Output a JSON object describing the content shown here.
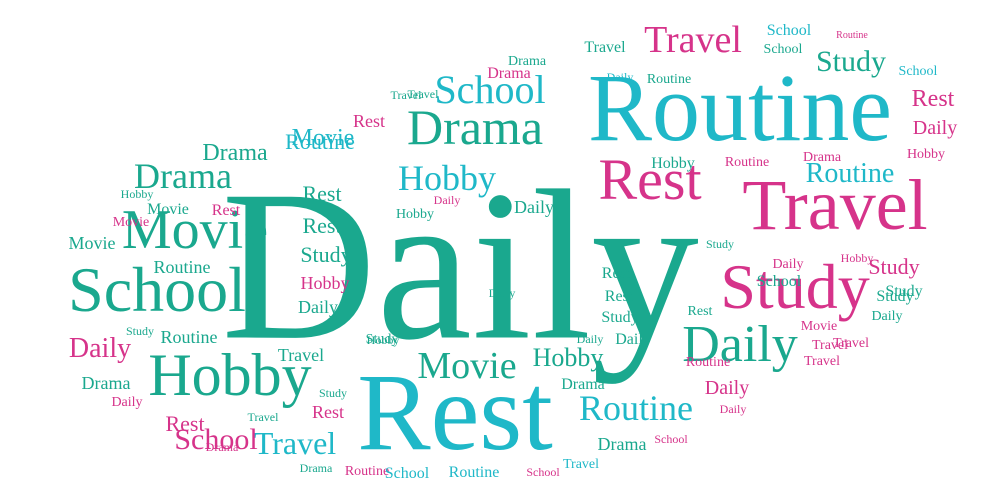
{
  "colors": {
    "teal": "#1aa88e",
    "cyan": "#1fb8c8",
    "pink": "#d6338a"
  },
  "words": [
    {
      "text": "Daily",
      "color": "teal"
    },
    {
      "text": "Routine",
      "color": "cyan"
    },
    {
      "text": "Rest",
      "color": "cyan"
    },
    {
      "text": "Travel",
      "color": "pink"
    },
    {
      "text": "School",
      "color": "teal"
    },
    {
      "text": "Study",
      "color": "pink"
    },
    {
      "text": "Hobby",
      "color": "teal"
    },
    {
      "text": "Movie",
      "color": "teal"
    },
    {
      "text": "Rest",
      "color": "pink"
    },
    {
      "text": "Drama",
      "color": "teal"
    },
    {
      "text": "School",
      "color": "cyan"
    },
    {
      "text": "Daily",
      "color": "teal"
    },
    {
      "text": "Hobby",
      "color": "cyan"
    },
    {
      "text": "Movie",
      "color": "teal"
    },
    {
      "text": "Routine",
      "color": "cyan"
    },
    {
      "text": "Travel",
      "color": "pink"
    },
    {
      "text": "Study",
      "color": "teal"
    },
    {
      "text": "Rest",
      "color": "pink"
    },
    {
      "text": "Drama",
      "color": "teal"
    },
    {
      "text": "Routine",
      "color": "cyan"
    },
    {
      "text": "Travel",
      "color": "cyan"
    },
    {
      "text": "Daily",
      "color": "pink"
    },
    {
      "text": "School",
      "color": "pink"
    },
    {
      "text": "Drama",
      "color": "teal"
    },
    {
      "text": "Movie",
      "color": "cyan"
    },
    {
      "text": "Hobby",
      "color": "teal"
    },
    {
      "text": "Study",
      "color": "pink"
    },
    {
      "text": "Routine",
      "color": "cyan"
    },
    {
      "text": "Rest",
      "color": "pink"
    },
    {
      "text": "Daily",
      "color": "pink"
    },
    {
      "text": "Rest",
      "color": "teal"
    },
    {
      "text": "Rest",
      "color": "teal"
    },
    {
      "text": "Study",
      "color": "teal"
    },
    {
      "text": "Hobby",
      "color": "pink"
    },
    {
      "text": "Daily",
      "color": "teal"
    },
    {
      "text": "Routine",
      "color": "teal"
    },
    {
      "text": "Movie",
      "color": "teal"
    },
    {
      "text": "Rest",
      "color": "pink"
    },
    {
      "text": "Daily",
      "color": "teal"
    },
    {
      "text": "Routine",
      "color": "teal"
    },
    {
      "text": "Drama",
      "color": "pink"
    },
    {
      "text": "Drama",
      "color": "teal"
    },
    {
      "text": "Travel",
      "color": "teal"
    },
    {
      "text": "Travel",
      "color": "teal"
    },
    {
      "text": "School",
      "color": "cyan"
    },
    {
      "text": "School",
      "color": "teal"
    },
    {
      "text": "Routine",
      "color": "pink"
    },
    {
      "text": "Daily",
      "color": "cyan"
    },
    {
      "text": "Hobby",
      "color": "pink"
    },
    {
      "text": "Hobby",
      "color": "teal"
    },
    {
      "text": "Routine",
      "color": "pink"
    },
    {
      "text": "Drama",
      "color": "pink"
    },
    {
      "text": "Study",
      "color": "teal"
    },
    {
      "text": "Daily",
      "color": "pink"
    },
    {
      "text": "Rest",
      "color": "teal"
    },
    {
      "text": "Rest",
      "color": "teal"
    },
    {
      "text": "Study",
      "color": "teal"
    },
    {
      "text": "Daily",
      "color": "teal"
    },
    {
      "text": "Rest",
      "color": "teal"
    },
    {
      "text": "Study",
      "color": "teal"
    },
    {
      "text": "Daily",
      "color": "teal"
    },
    {
      "text": "Movie",
      "color": "pink"
    },
    {
      "text": "Hobby",
      "color": "pink"
    },
    {
      "text": "Daily",
      "color": "teal"
    },
    {
      "text": "Study",
      "color": "teal"
    },
    {
      "text": "Travel",
      "color": "pink"
    },
    {
      "text": "Travel",
      "color": "teal"
    },
    {
      "text": "Movie",
      "color": "pink"
    },
    {
      "text": "Movie",
      "color": "teal"
    },
    {
      "text": "Hobby",
      "color": "teal"
    },
    {
      "text": "Study",
      "color": "teal"
    },
    {
      "text": "Routine",
      "color": "teal"
    },
    {
      "text": "Hobby",
      "color": "teal"
    },
    {
      "text": "Daily",
      "color": "teal"
    },
    {
      "text": "Travel",
      "color": "teal"
    },
    {
      "text": "Drama",
      "color": "teal"
    },
    {
      "text": "Daily",
      "color": "pink"
    },
    {
      "text": "Study",
      "color": "teal"
    },
    {
      "text": "Rest",
      "color": "pink"
    },
    {
      "text": "Travel",
      "color": "pink"
    },
    {
      "text": "Drama",
      "color": "teal"
    },
    {
      "text": "Drama",
      "color": "pink"
    },
    {
      "text": "Routine",
      "color": "pink"
    },
    {
      "text": "School",
      "color": "cyan"
    },
    {
      "text": "Routine",
      "color": "cyan"
    },
    {
      "text": "School",
      "color": "pink"
    },
    {
      "text": "Travel",
      "color": "cyan"
    },
    {
      "text": "Drama",
      "color": "teal"
    },
    {
      "text": "School",
      "color": "pink"
    },
    {
      "text": "Daily",
      "color": "pink"
    },
    {
      "text": "Drama",
      "color": "teal"
    },
    {
      "text": "Routine",
      "color": "pink"
    },
    {
      "text": "Travel",
      "color": "pink"
    },
    {
      "text": "Daily",
      "color": "pink"
    },
    {
      "text": "School",
      "color": "cyan"
    },
    {
      "text": "Study",
      "color": "teal"
    },
    {
      "text": "School",
      "color": "teal"
    },
    {
      "text": "Travel",
      "color": "teal"
    },
    {
      "text": "Daily",
      "color": "pink"
    },
    {
      "text": "Hobby",
      "color": "teal"
    },
    {
      "text": "Rest",
      "color": "pink"
    },
    {
      "text": "Movie",
      "color": "teal"
    }
  ]
}
